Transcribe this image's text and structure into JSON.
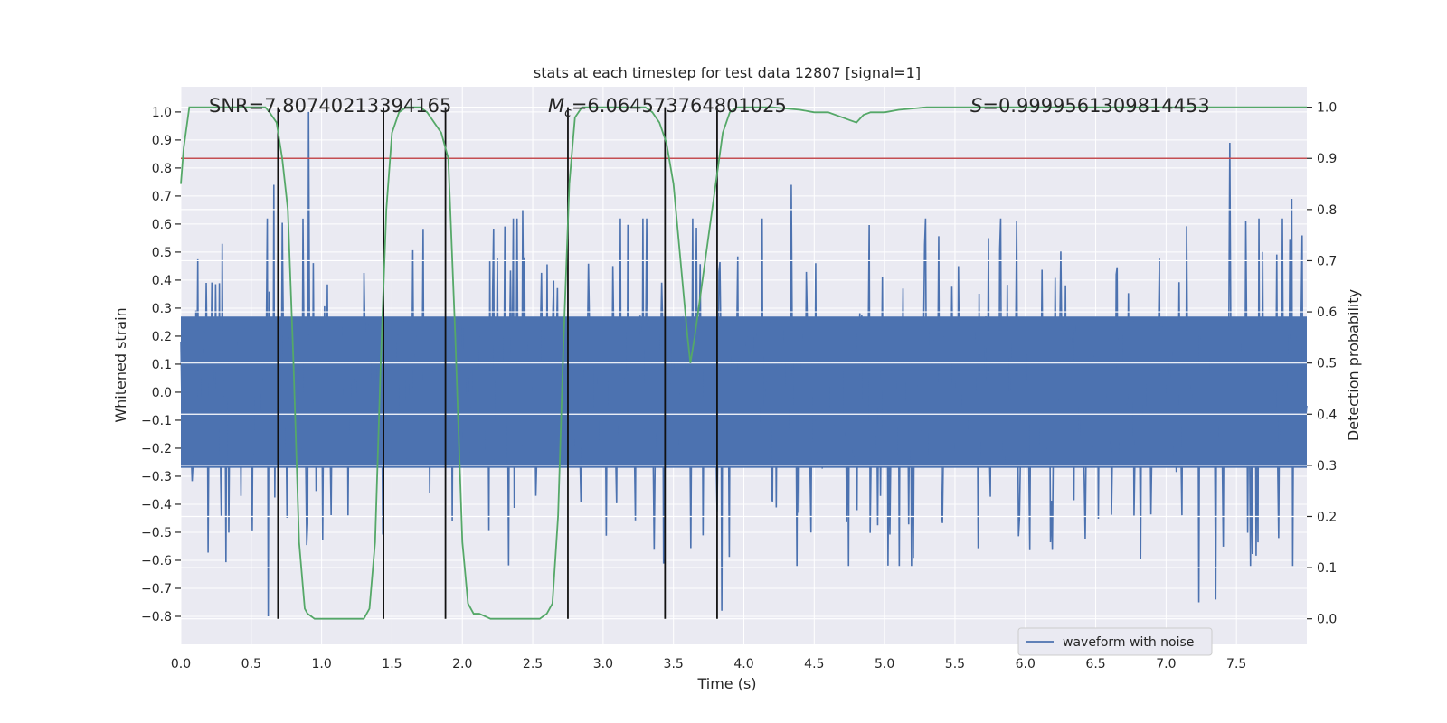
{
  "chart_data": {
    "type": "line",
    "title": "stats at each timestep for test data 12807 [signal=1]",
    "xlabel": "Time (s)",
    "ylabel": "Whitened strain",
    "y2label": "Detection probability",
    "xlim": [
      0.0,
      8.0
    ],
    "ylim": [
      -0.9,
      1.09
    ],
    "y2lim": [
      -0.05,
      1.04
    ],
    "xticks": [
      0.0,
      0.5,
      1.0,
      1.5,
      2.0,
      2.5,
      3.0,
      3.5,
      4.0,
      4.5,
      5.0,
      5.5,
      6.0,
      6.5,
      7.0,
      7.5
    ],
    "xtick_labels": [
      "0.0",
      "0.5",
      "1.0",
      "1.5",
      "2.0",
      "2.5",
      "3.0",
      "3.5",
      "4.0",
      "4.5",
      "5.0",
      "5.5",
      "6.0",
      "6.5",
      "7.0",
      "7.5"
    ],
    "yticks": [
      -0.8,
      -0.7,
      -0.6,
      -0.5,
      -0.4,
      -0.3,
      -0.2,
      -0.1,
      0.0,
      0.1,
      0.2,
      0.3,
      0.4,
      0.5,
      0.6,
      0.7,
      0.8,
      0.9,
      1.0
    ],
    "ytick_labels": [
      "−0.8",
      "−0.7",
      "−0.6",
      "−0.5",
      "−0.4",
      "−0.3",
      "−0.2",
      "−0.1",
      "0.0",
      "0.1",
      "0.2",
      "0.3",
      "0.4",
      "0.5",
      "0.6",
      "0.7",
      "0.8",
      "0.9",
      "1.0"
    ],
    "y2ticks": [
      0.0,
      0.1,
      0.2,
      0.3,
      0.4,
      0.5,
      0.6,
      0.7,
      0.8,
      0.9,
      1.0
    ],
    "y2tick_labels": [
      "0.0",
      "0.1",
      "0.2",
      "0.3",
      "0.4",
      "0.5",
      "0.6",
      "0.7",
      "0.8",
      "0.9",
      "1.0"
    ],
    "annotations": {
      "snr": "SNR=7.80740213394165",
      "mc_symbol": "M",
      "mc_sub": "c",
      "mc_value": "=6.064573764801025",
      "s_symbol": "S",
      "s_value": "=0.9999561309814453"
    },
    "legend": {
      "label": "waveform with noise",
      "placement": "lower-right"
    },
    "threshold": {
      "axis": "right",
      "value": 0.9
    },
    "event_times": [
      0.69,
      1.44,
      1.88,
      2.75,
      3.44,
      3.81
    ],
    "waveform": {
      "name": "waveform with noise",
      "t_start": 0.0,
      "t_end": 8.0,
      "samples": 1200,
      "core_amplitude": 0.27,
      "notable_peaks": [
        {
          "t": 0.91,
          "value": 1.0
        },
        {
          "t": 0.66,
          "value": 0.74
        },
        {
          "t": 0.62,
          "value": -0.8
        },
        {
          "t": 2.43,
          "value": 0.65
        },
        {
          "t": 3.84,
          "value": -0.78
        },
        {
          "t": 4.34,
          "value": 0.74
        },
        {
          "t": 7.45,
          "value": 0.89
        },
        {
          "t": 7.35,
          "value": -0.74
        },
        {
          "t": 7.23,
          "value": -0.75
        },
        {
          "t": 7.89,
          "value": 0.69
        },
        {
          "t": 7.9,
          "value": -0.62
        }
      ]
    },
    "probability": {
      "name": "detection probability",
      "x": [
        0.0,
        0.02,
        0.06,
        0.1,
        0.2,
        0.3,
        0.4,
        0.5,
        0.6,
        0.63,
        0.68,
        0.72,
        0.76,
        0.8,
        0.84,
        0.88,
        0.9,
        0.95,
        1.0,
        1.1,
        1.2,
        1.25,
        1.3,
        1.34,
        1.38,
        1.42,
        1.46,
        1.5,
        1.55,
        1.6,
        1.7,
        1.75,
        1.8,
        1.85,
        1.9,
        1.95,
        2.0,
        2.04,
        2.08,
        2.12,
        2.2,
        2.3,
        2.4,
        2.5,
        2.55,
        2.6,
        2.64,
        2.68,
        2.72,
        2.76,
        2.8,
        2.85,
        2.9,
        3.0,
        3.1,
        3.2,
        3.3,
        3.35,
        3.4,
        3.45,
        3.5,
        3.55,
        3.6,
        3.62,
        3.65,
        3.7,
        3.75,
        3.8,
        3.85,
        3.9,
        3.95,
        4.0,
        4.2,
        4.4,
        4.5,
        4.6,
        4.7,
        4.75,
        4.8,
        4.85,
        4.9,
        5.0,
        5.1,
        5.3,
        5.5,
        6.0,
        6.5,
        7.0,
        7.5,
        8.0
      ],
      "y": [
        0.85,
        0.92,
        1.0,
        1.0,
        1.0,
        1.0,
        1.0,
        1.0,
        1.0,
        0.99,
        0.97,
        0.9,
        0.8,
        0.5,
        0.15,
        0.02,
        0.01,
        0.0,
        0.0,
        0.0,
        0.0,
        0.0,
        0.0,
        0.02,
        0.15,
        0.5,
        0.8,
        0.95,
        0.99,
        1.0,
        1.0,
        0.99,
        0.97,
        0.95,
        0.9,
        0.55,
        0.15,
        0.03,
        0.01,
        0.01,
        0.0,
        0.0,
        0.0,
        0.0,
        0.0,
        0.01,
        0.03,
        0.2,
        0.55,
        0.85,
        0.98,
        1.0,
        1.0,
        1.0,
        1.0,
        1.0,
        1.0,
        0.99,
        0.97,
        0.93,
        0.85,
        0.7,
        0.55,
        0.5,
        0.55,
        0.65,
        0.75,
        0.85,
        0.95,
        0.99,
        1.0,
        1.0,
        1.0,
        0.995,
        0.99,
        0.99,
        0.98,
        0.975,
        0.97,
        0.985,
        0.99,
        0.99,
        0.995,
        1.0,
        1.0,
        1.0,
        1.0,
        1.0,
        1.0,
        1.0
      ]
    }
  }
}
